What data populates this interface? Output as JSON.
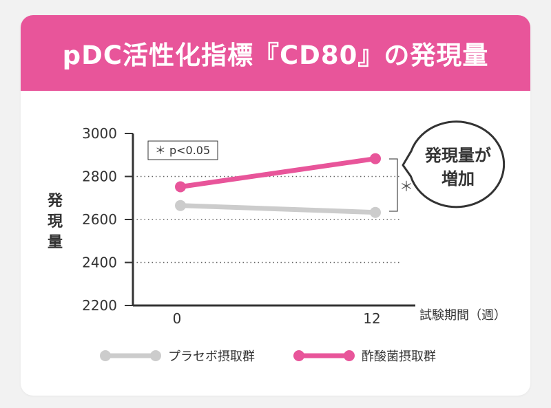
{
  "header": {
    "title": "pDC活性化指標『CD80』の発現量"
  },
  "colors": {
    "accent": "#e8559a",
    "placebo": "#cccccc",
    "axis": "#333333",
    "grid": "#666666"
  },
  "chart_data": {
    "type": "line",
    "x": [
      0,
      12
    ],
    "x_tick_labels": [
      "0",
      "12"
    ],
    "xlabel": "試験期間（週）",
    "ylabel_chars": [
      "発",
      "現",
      "量"
    ],
    "ylim": [
      2200,
      3000
    ],
    "y_ticks": [
      2200,
      2400,
      2600,
      2800,
      3000
    ],
    "y_tick_labels": [
      "2200",
      "2400",
      "2600",
      "2800",
      "3000"
    ],
    "gridlines_dotted": [
      2400,
      2600,
      2800
    ],
    "series": [
      {
        "name": "プラセボ摂取群",
        "values": [
          2665,
          2633
        ],
        "color": "#cccccc"
      },
      {
        "name": "酢酸菌摂取群",
        "values": [
          2752,
          2883
        ],
        "color": "#e8559a"
      }
    ],
    "annotations": {
      "significance_note": "＊ p<0.05",
      "significance_mark": "＊",
      "callout_line1": "発現量が",
      "callout_line2": "増加"
    },
    "legend_position": "bottom"
  }
}
